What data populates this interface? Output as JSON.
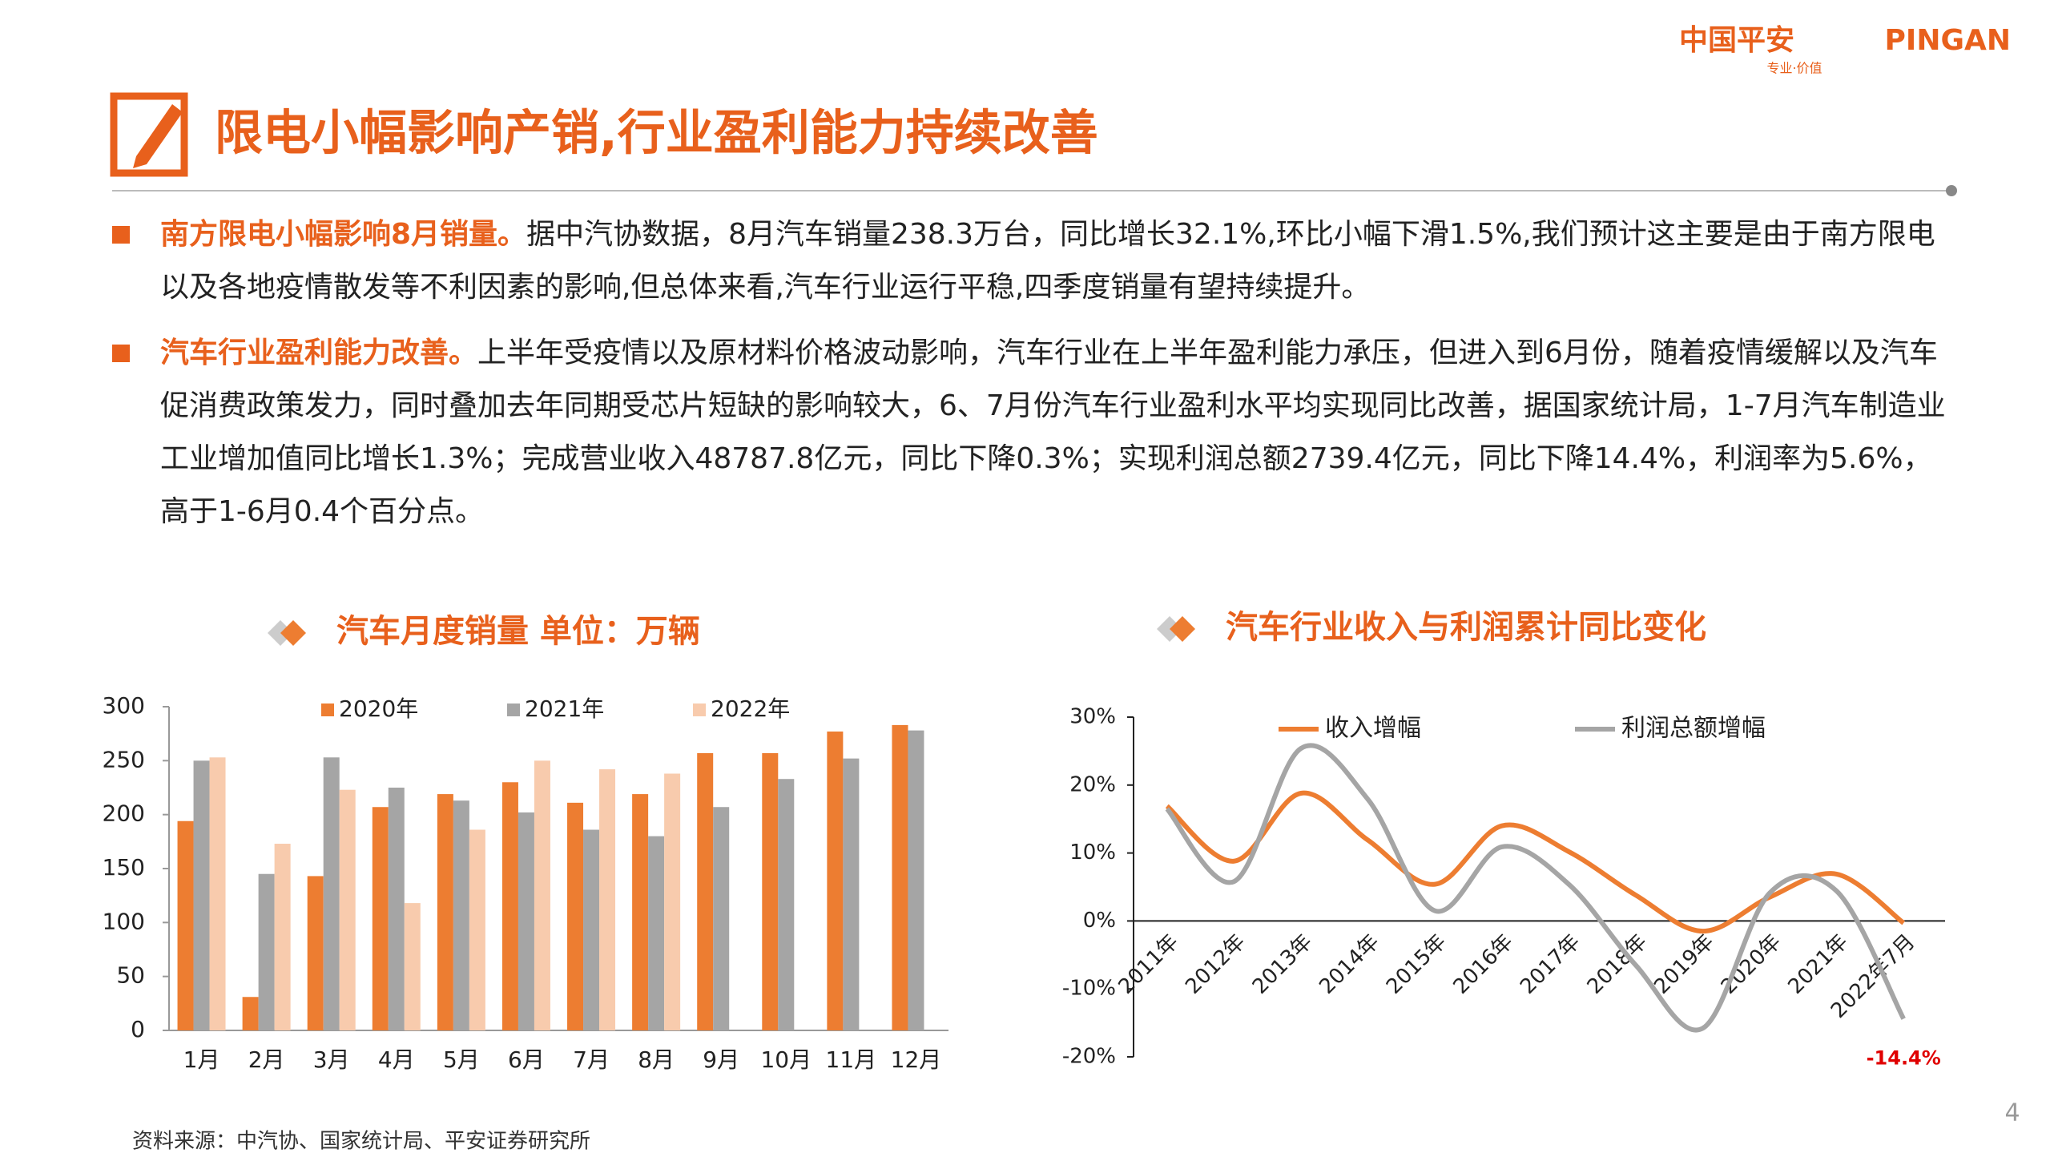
{
  "logo": {
    "name": "中国平安",
    "brand": "PINGAN",
    "slogan": "专业·价值"
  },
  "title": "限电小幅影响产销,行业盈利能力持续改善",
  "bullets": [
    {
      "lead": "南方限电小幅影响8月销量。",
      "text": "据中汽协数据，8月汽车销量238.3万台，同比增长32.1%,环比小幅下滑1.5%,我们预计这主要是由于南方限电以及各地疫情散发等不利因素的影响,但总体来看,汽车行业运行平稳,四季度销量有望持续提升。"
    },
    {
      "lead": "汽车行业盈利能力改善。",
      "text": "上半年受疫情以及原材料价格波动影响，汽车行业在上半年盈利能力承压，但进入到6月份，随着疫情缓解以及汽车促消费政策发力，同时叠加去年同期受芯片短缺的影响较大，6、7月份汽车行业盈利水平均实现同比改善，据国家统计局，1-7月汽车制造业工业增加值同比增长1.3%；完成营业收入48787.8亿元，同比下降0.3%；实现利润总额2739.4亿元，同比下降14.4%，利润率为5.6%，高于1-6月0.4个百分点。"
    }
  ],
  "chart_data": [
    {
      "type": "bar",
      "title": "汽车月度销量   单位：万辆",
      "categories": [
        "1月",
        "2月",
        "3月",
        "4月",
        "5月",
        "6月",
        "7月",
        "8月",
        "9月",
        "10月",
        "11月",
        "12月"
      ],
      "series": [
        {
          "name": "2020年",
          "color": "#ED7D31",
          "values": [
            194,
            31,
            143,
            207,
            219,
            230,
            211,
            219,
            257,
            257,
            277,
            283
          ]
        },
        {
          "name": "2021年",
          "color": "#A5A5A5",
          "values": [
            250,
            145,
            253,
            225,
            213,
            202,
            186,
            180,
            207,
            233,
            252,
            278
          ]
        },
        {
          "name": "2022年",
          "color": "#F8CBAD",
          "values": [
            253,
            173,
            223,
            118,
            186,
            250,
            242,
            238,
            null,
            null,
            null,
            null
          ]
        }
      ],
      "ylim": [
        0,
        300
      ],
      "yticks": [
        0,
        50,
        100,
        150,
        200,
        250,
        300
      ],
      "legend": "top"
    },
    {
      "type": "line",
      "title": "汽车行业收入与利润累计同比变化",
      "categories": [
        "2011年",
        "2012年",
        "2013年",
        "2014年",
        "2015年",
        "2016年",
        "2017年",
        "2018年",
        "2019年",
        "2020年",
        "2021年",
        "2022年7月"
      ],
      "series": [
        {
          "name": "收入增幅",
          "color": "#ED7D31",
          "values": [
            16.9,
            8.8,
            18.8,
            11.9,
            5.4,
            14.0,
            10.2,
            3.8,
            -1.5,
            3.5,
            6.9,
            -0.3
          ]
        },
        {
          "name": "利润总额增幅",
          "color": "#A5A5A5",
          "values": [
            16.5,
            5.8,
            25.4,
            17.9,
            1.5,
            10.9,
            5.4,
            -6.5,
            -15.8,
            4.1,
            4.4,
            -14.4
          ],
          "value_labels": [
            null,
            null,
            null,
            null,
            null,
            null,
            null,
            null,
            null,
            null,
            null,
            "-14.4%"
          ]
        }
      ],
      "ylim": [
        -20,
        30
      ],
      "yticks": [
        {
          "value": -20,
          "label": "-20%"
        },
        {
          "value": -10,
          "label": "-10%"
        },
        {
          "value": 0,
          "label": "0%"
        },
        {
          "value": 10,
          "label": "10%"
        },
        {
          "value": 20,
          "label": "20%"
        },
        {
          "value": 30,
          "label": "30%"
        }
      ],
      "legend": "top"
    }
  ],
  "source": "资料来源：中汽协、国家统计局、平安证券研究所",
  "page_number": 4
}
